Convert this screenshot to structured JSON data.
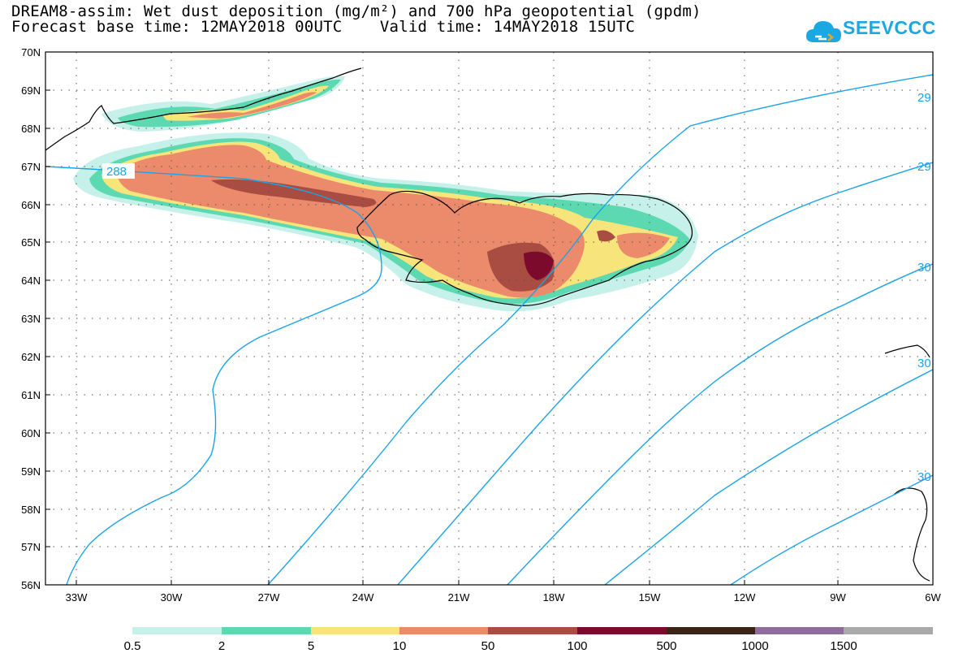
{
  "header": {
    "title_line1": "DREAM8-assim: Wet dust deposition (mg/m²) and 700 hPa geopotential (gpdm)",
    "title_line2": "Forecast base time: 12MAY2018 00UTC    Valid time: 14MAY2018 15UTC",
    "logo_text": "SEEVCCC",
    "logo_icon": "cloud-icon"
  },
  "map": {
    "lat_labels": [
      "70N",
      "69N",
      "68N",
      "67N",
      "66N",
      "65N",
      "64N",
      "63N",
      "62N",
      "61N",
      "60N",
      "59N",
      "58N",
      "57N",
      "56N"
    ],
    "lon_labels": [
      "33W",
      "30W",
      "27W",
      "24W",
      "21W",
      "18W",
      "15W",
      "12W",
      "9W",
      "6W"
    ],
    "contour_labels": [
      "288",
      "29",
      "29",
      "30",
      "30",
      "30"
    ],
    "contour_color": "#1aa3e8"
  },
  "legend": {
    "labels": [
      "0.5",
      "2",
      "5",
      "10",
      "50",
      "100",
      "500",
      "1000",
      "1500"
    ],
    "colors": [
      "#c6f1ea",
      "#5dd9b2",
      "#f7e47a",
      "#ec8a6c",
      "#a94c41",
      "#7c0a2c",
      "#3b2417",
      "#8e6c9c",
      "#a9a9a9"
    ]
  },
  "chart_data": {
    "type": "heatmap",
    "title": "DREAM8-assim: Wet dust deposition (mg/m²) and 700 hPa geopotential (gpdm)",
    "variable": "Wet dust deposition (mg/m²)",
    "contour_variable": "700 hPa geopotential (gpdm)",
    "lat_range": [
      "56N",
      "70N"
    ],
    "lon_range": [
      "33W",
      "6W"
    ],
    "color_levels": [
      0.5,
      2,
      5,
      10,
      50,
      100,
      500,
      1000,
      1500
    ],
    "contour_values_labeled": [
      288,
      29,
      29,
      30,
      30,
      30
    ],
    "forecast_base_time": "12MAY2018 00UTC",
    "valid_time": "14MAY2018 15UTC"
  }
}
